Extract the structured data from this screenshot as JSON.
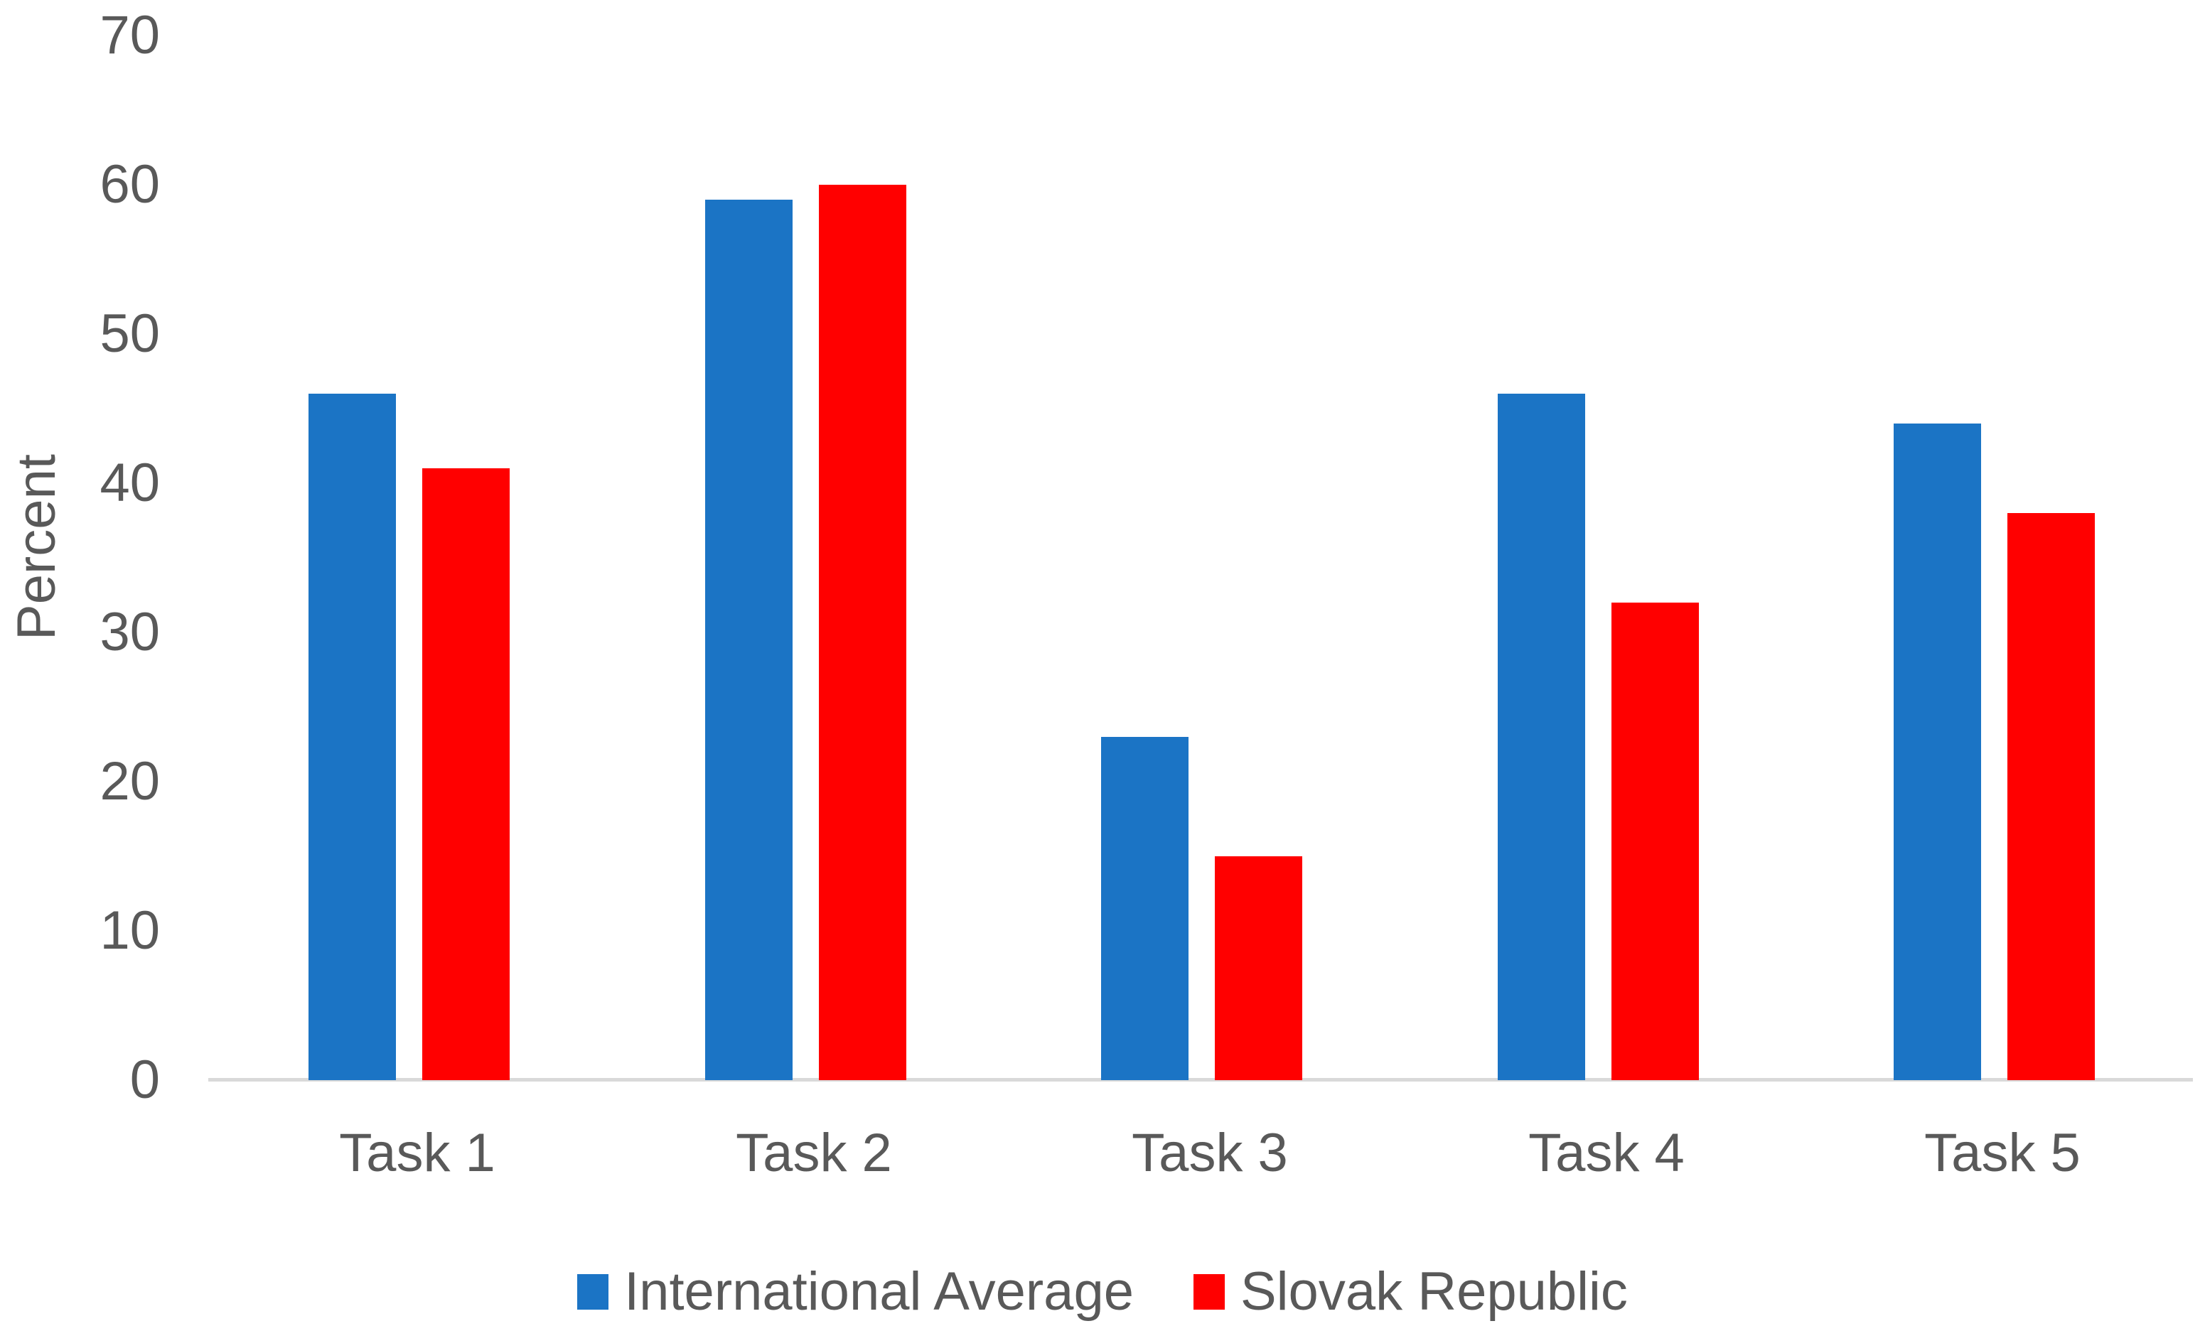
{
  "chart_data": {
    "type": "bar",
    "title": "",
    "ylabel": "Percent",
    "xlabel": "",
    "categories": [
      "Task 1",
      "Task 2",
      "Task 3",
      "Task 4",
      "Task 5"
    ],
    "series": [
      {
        "name": "International Average",
        "color": "#1B74C5",
        "values": [
          46,
          59,
          23,
          46,
          44
        ]
      },
      {
        "name": "Slovak Republic",
        "color": "#FF0000",
        "values": [
          41,
          60,
          15,
          32,
          38
        ]
      }
    ],
    "ylim": [
      0,
      70
    ],
    "ytick_step": 10,
    "yticks": [
      0,
      10,
      20,
      30,
      40,
      50,
      60,
      70
    ],
    "grid": false,
    "legend_position": "bottom"
  },
  "colors": {
    "background": "#FFFFFF",
    "axis_line": "#D9D9D9",
    "label_text": "#595959"
  }
}
